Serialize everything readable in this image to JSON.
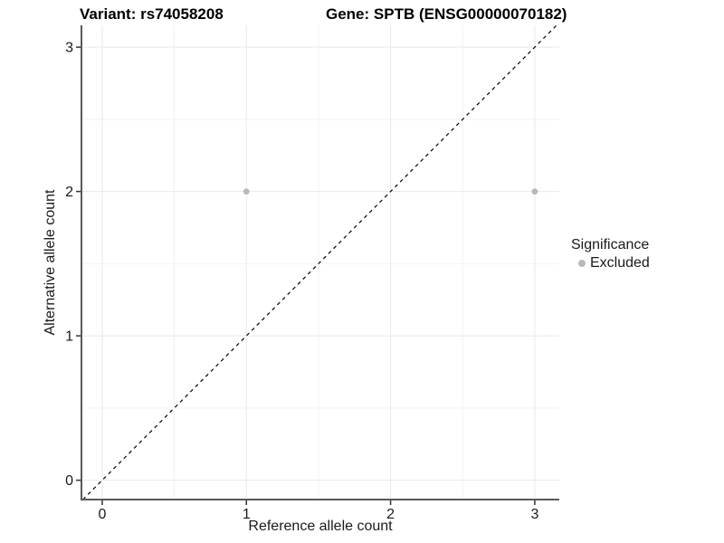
{
  "chart_data": {
    "type": "scatter",
    "title_left": "Variant: rs74058208",
    "title_right": "Gene: SPTB (ENSG00000070182)",
    "xlabel": "Reference allele count",
    "ylabel": "Alternative allele count",
    "x_ticks": [
      0,
      1,
      2,
      3
    ],
    "y_ticks": [
      0,
      1,
      2,
      3
    ],
    "x_minor_ticks": [
      0.5,
      1.5,
      2.5
    ],
    "y_minor_ticks": [
      0.5,
      1.5,
      2.5
    ],
    "xlim": [
      -0.144,
      3.17
    ],
    "ylim": [
      -0.134,
      3.151
    ],
    "grid": "major+minor",
    "series": [
      {
        "name": "Excluded",
        "color": "#b9b9b9",
        "points": [
          {
            "x": 1,
            "y": 2
          },
          {
            "x": 3,
            "y": 2
          }
        ]
      }
    ],
    "identity_line": {
      "slope": 1,
      "intercept": 0,
      "style": "dashed",
      "color": "#000000"
    },
    "legend": {
      "position": "right",
      "title": "Significance",
      "items": [
        {
          "label": "Excluded",
          "color": "#b9b9b9",
          "marker": "circle"
        }
      ]
    },
    "colors": {
      "background": "#ffffff",
      "axis_line": "#595959",
      "tick_mark": "#333333",
      "tick_label": "#1a1a1a",
      "grid_major": "#e8e8e8",
      "grid_minor": "#f2f2f2",
      "point": "#b9b9b9",
      "identity_line": "#000000",
      "title": "#000000"
    }
  }
}
